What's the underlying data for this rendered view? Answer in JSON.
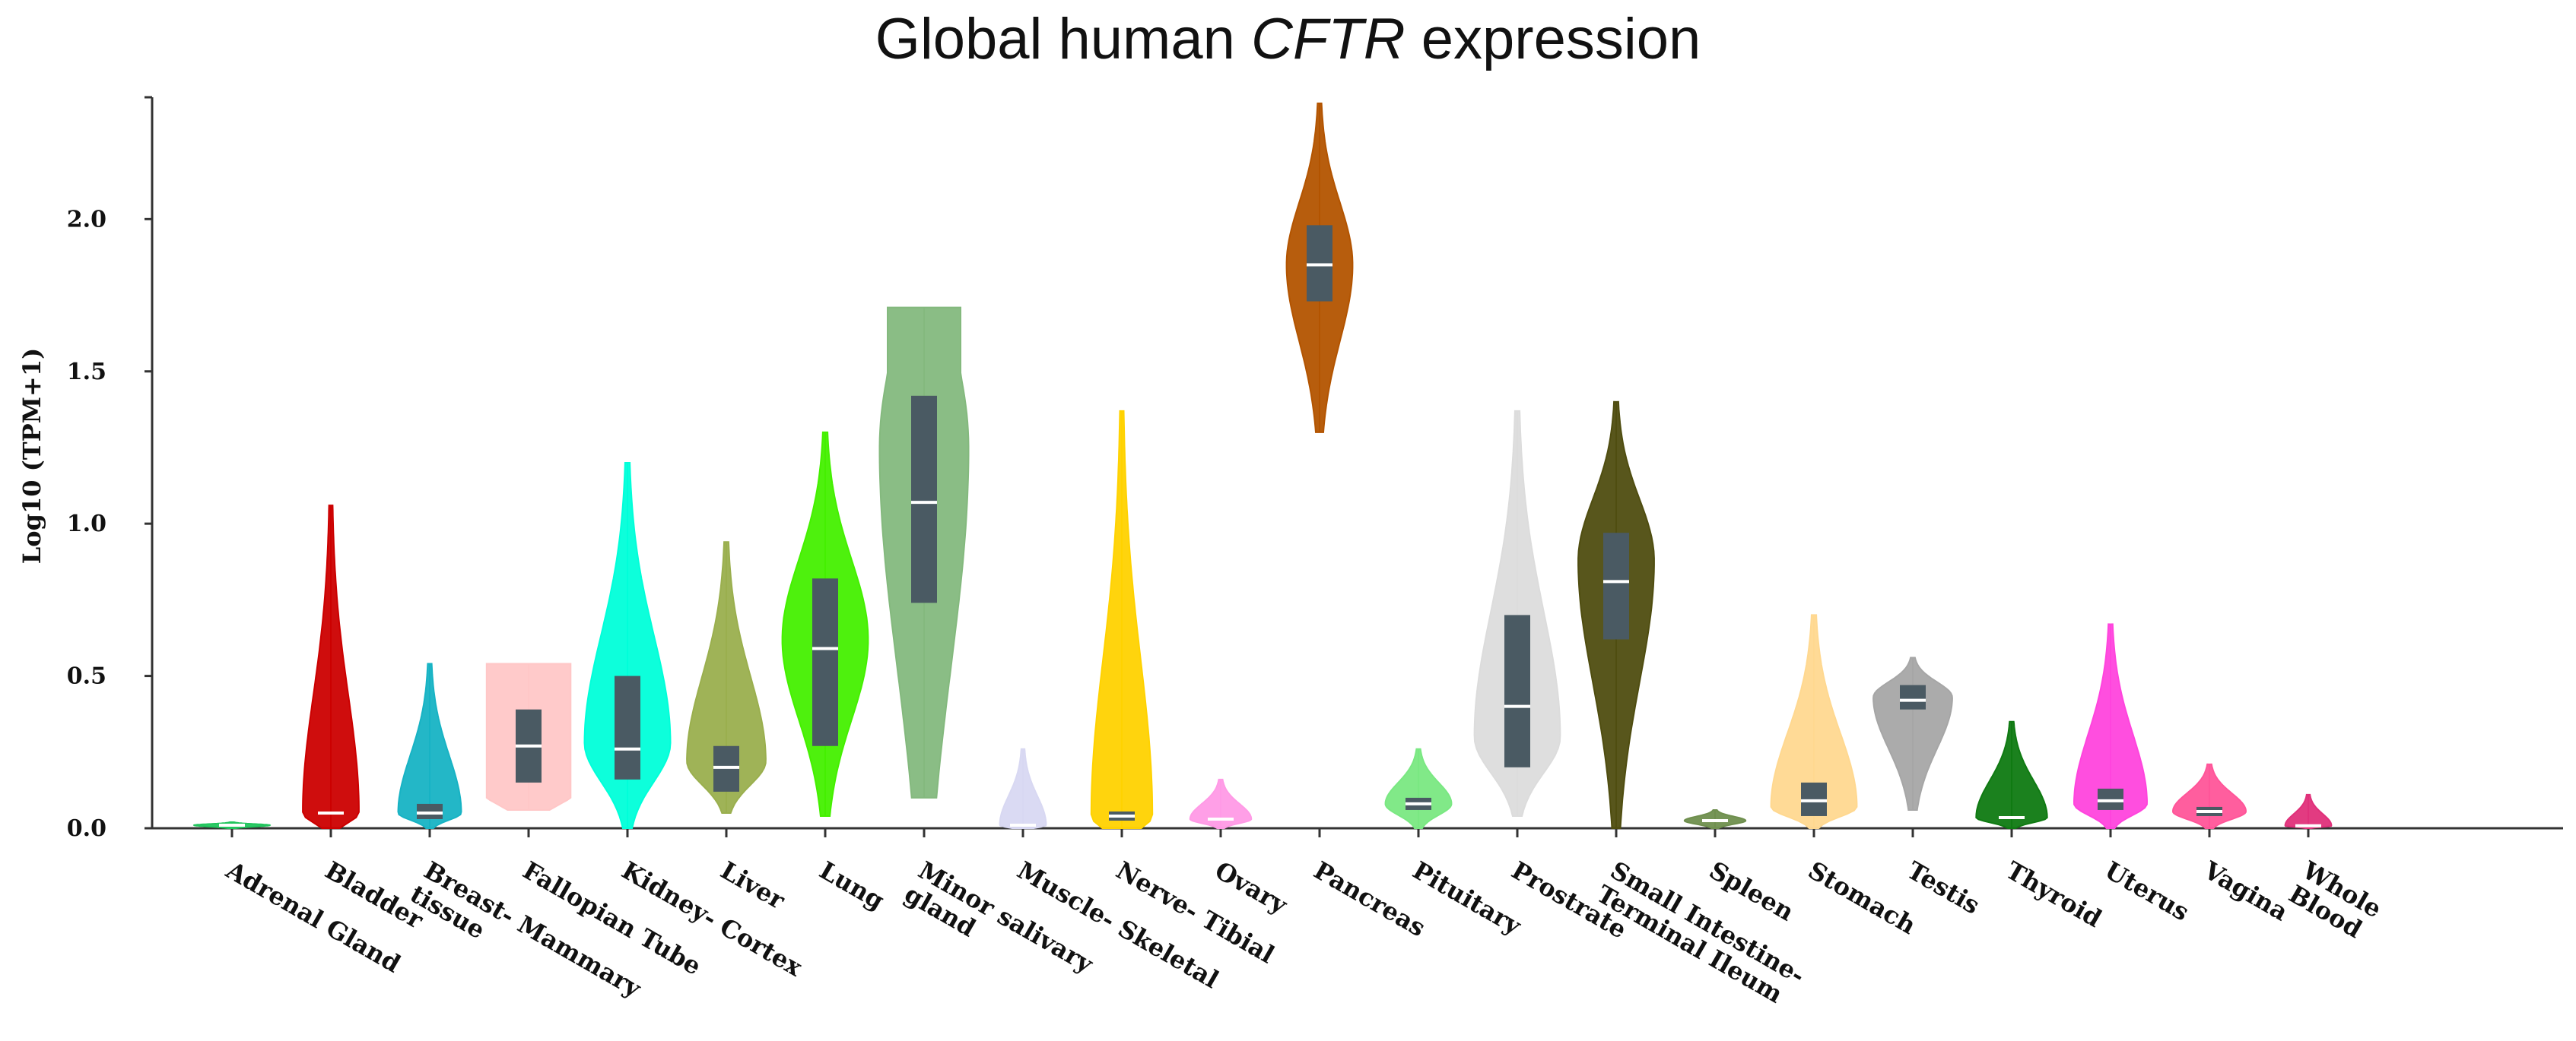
{
  "chart_data": {
    "type": "violin",
    "title_prefix": "Global human ",
    "title_gene": "CFTR",
    "title_suffix": " expression",
    "ylabel": "Log10 (TPM+1)",
    "ylim": [
      0,
      2.4
    ],
    "yticks": [
      0.0,
      0.5,
      1.0,
      1.5,
      2.0
    ],
    "ytick_labels": [
      "0.0",
      "0.5",
      "1.0",
      "1.5",
      "2.0"
    ],
    "categories": [
      {
        "label": [
          "Adrenal Gland"
        ],
        "color": "#22c55e",
        "min": 0.0,
        "max": 0.02,
        "q1": 0.005,
        "median": 0.01,
        "q3": 0.015,
        "peak": 0.01,
        "width": 0.75,
        "box": false
      },
      {
        "label": [
          "Bladder"
        ],
        "color": "#cc0000",
        "min": 0.0,
        "max": 1.06,
        "q1": 0.04,
        "median": 0.05,
        "q3": 0.06,
        "peak": 0.05,
        "width": 0.55,
        "box": false
      },
      {
        "label": [
          "Breast- Mammary",
          "tissue"
        ],
        "color": "#17b3c4",
        "min": 0.0,
        "max": 0.54,
        "q1": 0.03,
        "median": 0.05,
        "q3": 0.08,
        "peak": 0.05,
        "width": 0.62,
        "box": true
      },
      {
        "label": [
          "Fallopian Tube"
        ],
        "color": "#ffc7c7",
        "min": 0.06,
        "max": 0.54,
        "q1": 0.15,
        "median": 0.27,
        "q3": 0.39,
        "peak": 0.3,
        "width": 0.85,
        "box": true,
        "flat": true
      },
      {
        "label": [
          "Kidney- Cortex"
        ],
        "color": "#00ffd9",
        "min": 0.0,
        "max": 1.2,
        "q1": 0.16,
        "median": 0.26,
        "q3": 0.5,
        "peak": 0.28,
        "width": 0.85,
        "box": true
      },
      {
        "label": [
          "Liver"
        ],
        "color": "#9aaf4e",
        "min": 0.05,
        "max": 0.94,
        "q1": 0.12,
        "median": 0.2,
        "q3": 0.27,
        "peak": 0.22,
        "width": 0.78,
        "box": true
      },
      {
        "label": [
          "Lung"
        ],
        "color": "#44f000",
        "min": 0.04,
        "max": 1.3,
        "q1": 0.27,
        "median": 0.59,
        "q3": 0.82,
        "peak": 0.62,
        "width": 0.85,
        "box": true
      },
      {
        "label": [
          "Minor salivary",
          "gland"
        ],
        "color": "#84b97e",
        "min": 0.1,
        "max": 1.71,
        "q1": 0.74,
        "median": 1.07,
        "q3": 1.42,
        "peak": 1.25,
        "width": 0.9,
        "box": true,
        "flattop": true
      },
      {
        "label": [
          "Muscle- Skeletal"
        ],
        "color": "#d8d8f2",
        "min": 0.0,
        "max": 0.26,
        "q1": 0.005,
        "median": 0.01,
        "q3": 0.015,
        "peak": 0.01,
        "width": 0.45,
        "box": false
      },
      {
        "label": [
          "Nerve- Tibial"
        ],
        "color": "#ffd200",
        "min": 0.0,
        "max": 1.37,
        "q1": 0.025,
        "median": 0.04,
        "q3": 0.055,
        "peak": 0.04,
        "width": 0.6,
        "box": true
      },
      {
        "label": [
          "Ovary"
        ],
        "color": "#ff9ae6",
        "min": 0.0,
        "max": 0.16,
        "q1": 0.02,
        "median": 0.03,
        "q3": 0.04,
        "peak": 0.03,
        "width": 0.6,
        "box": false
      },
      {
        "label": [
          "Pancreas"
        ],
        "color": "#b35400",
        "min": 1.3,
        "max": 2.38,
        "q1": 1.73,
        "median": 1.85,
        "q3": 1.98,
        "peak": 1.85,
        "width": 0.65,
        "box": true
      },
      {
        "label": [
          "Pituitary"
        ],
        "color": "#7ae882",
        "min": 0.0,
        "max": 0.26,
        "q1": 0.06,
        "median": 0.08,
        "q3": 0.1,
        "peak": 0.08,
        "width": 0.65,
        "box": true
      },
      {
        "label": [
          "Prostrate"
        ],
        "color": "#dcdcdc",
        "min": 0.04,
        "max": 1.37,
        "q1": 0.2,
        "median": 0.4,
        "q3": 0.7,
        "peak": 0.3,
        "width": 0.85,
        "box": true
      },
      {
        "label": [
          "Small Intestine-",
          "Terminal Ileum"
        ],
        "color": "#4f4d10",
        "min": 0.0,
        "max": 1.4,
        "q1": 0.62,
        "median": 0.81,
        "q3": 0.97,
        "peak": 0.88,
        "width": 0.75,
        "box": true
      },
      {
        "label": [
          "Spleen"
        ],
        "color": "#6f8f4e",
        "min": 0.0,
        "max": 0.06,
        "q1": 0.015,
        "median": 0.025,
        "q3": 0.035,
        "peak": 0.025,
        "width": 0.6,
        "box": false
      },
      {
        "label": [
          "Stomach"
        ],
        "color": "#ffd890",
        "min": 0.0,
        "max": 0.7,
        "q1": 0.04,
        "median": 0.09,
        "q3": 0.15,
        "peak": 0.07,
        "width": 0.85,
        "box": true
      },
      {
        "label": [
          "Testis"
        ],
        "color": "#a6a6a6",
        "min": 0.06,
        "max": 0.56,
        "q1": 0.39,
        "median": 0.42,
        "q3": 0.47,
        "peak": 0.43,
        "width": 0.78,
        "box": true
      },
      {
        "label": [
          "Thyroid"
        ],
        "color": "#0f7a12",
        "min": 0.0,
        "max": 0.35,
        "q1": 0.025,
        "median": 0.035,
        "q3": 0.045,
        "peak": 0.035,
        "width": 0.7,
        "box": false
      },
      {
        "label": [
          "Uterus"
        ],
        "color": "#ff44dd",
        "min": 0.0,
        "max": 0.67,
        "q1": 0.06,
        "median": 0.09,
        "q3": 0.13,
        "peak": 0.08,
        "width": 0.72,
        "box": true
      },
      {
        "label": [
          "Vagina"
        ],
        "color": "#ff5599",
        "min": 0.0,
        "max": 0.21,
        "q1": 0.04,
        "median": 0.055,
        "q3": 0.07,
        "peak": 0.055,
        "width": 0.72,
        "box": true
      },
      {
        "label": [
          "Whole",
          "Blood"
        ],
        "color": "#e0307a",
        "min": 0.0,
        "max": 0.11,
        "q1": 0.004,
        "median": 0.008,
        "q3": 0.012,
        "peak": 0.008,
        "width": 0.45,
        "box": false
      }
    ],
    "box_color": "#4a5a63",
    "median_color": "#ffffff",
    "grid": false,
    "legend": "none"
  }
}
